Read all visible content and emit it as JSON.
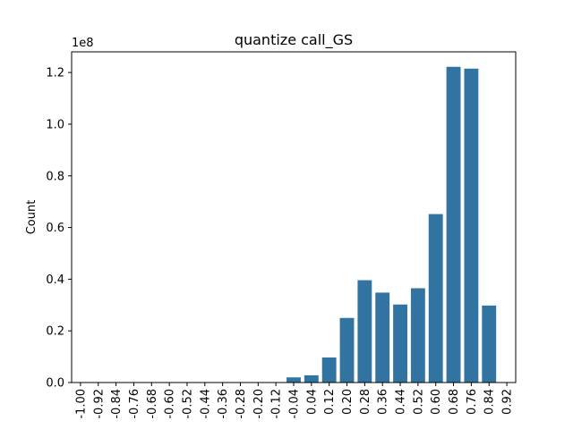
{
  "chart_data": {
    "type": "bar",
    "title": "quantize call_GS",
    "xlabel": "",
    "ylabel": "Count",
    "offset_label": "1e8",
    "bar_color": "#3274a1",
    "ylim": [
      0,
      1.28
    ],
    "yticks": [
      "0.0",
      "0.2",
      "0.4",
      "0.6",
      "0.8",
      "1.0",
      "1.2"
    ],
    "categories": [
      "-1.00",
      "-0.92",
      "-0.84",
      "-0.76",
      "-0.68",
      "-0.60",
      "-0.52",
      "-0.44",
      "-0.36",
      "-0.28",
      "-0.20",
      "-0.12",
      "-0.04",
      "0.04",
      "0.12",
      "0.20",
      "0.28",
      "0.36",
      "0.44",
      "0.52",
      "0.60",
      "0.68",
      "0.76",
      "0.84",
      "0.92"
    ],
    "values": [
      0,
      0,
      0,
      0,
      0,
      0,
      0,
      0,
      0,
      0,
      0,
      0,
      0.02,
      0.028,
      0.097,
      0.25,
      0.396,
      0.348,
      0.302,
      0.365,
      0.652,
      1.222,
      1.215,
      0.298,
      0
    ]
  }
}
